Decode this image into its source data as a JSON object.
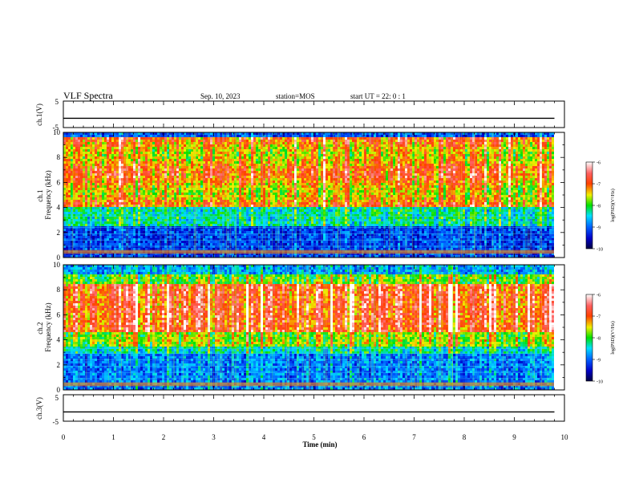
{
  "header": {
    "title": "VLF Spectra",
    "date": "Sep. 10, 2023",
    "station": "station=MOS",
    "start": "start  UT =   22: 0  : 1"
  },
  "chart_data": [
    {
      "type": "line",
      "name": "ch1-waveform",
      "ylabel": "ch.1(V)",
      "yticks": [
        "5",
        "-5"
      ],
      "ylim": [
        -5,
        5
      ],
      "xlim": [
        0,
        10
      ],
      "x": [
        0,
        9.8
      ],
      "y": [
        -1.5,
        -1.5
      ]
    },
    {
      "type": "heatmap",
      "name": "ch1-spectrogram",
      "ylabel": "ch.1\nFrequency (kHz)",
      "yticks": [
        "0",
        "2",
        "4",
        "6",
        "8",
        "10"
      ],
      "ylim": [
        0,
        10
      ],
      "xlim": [
        0,
        9.8
      ],
      "colorbar": {
        "label": "log(PSD)(V²/Hz)",
        "ticks": [
          "-6",
          "-7",
          "-8",
          "-9",
          "-10"
        ],
        "range": [
          -10,
          -6
        ]
      }
    },
    {
      "type": "heatmap",
      "name": "ch2-spectrogram",
      "ylabel": "ch.2\nFrequency (kHz)",
      "yticks": [
        "0",
        "2",
        "4",
        "6",
        "8",
        "10"
      ],
      "ylim": [
        0,
        10
      ],
      "xlim": [
        0,
        9.8
      ],
      "colorbar": {
        "label": "log(PSD)(V²/Hz)",
        "ticks": [
          "-6",
          "-7",
          "-8",
          "-9",
          "-10"
        ],
        "range": [
          -10,
          -6
        ]
      }
    },
    {
      "type": "line",
      "name": "ch3-waveform",
      "ylabel": "ch.3(V)",
      "yticks": [
        "5",
        "-5"
      ],
      "ylim": [
        -5,
        5
      ],
      "xlim": [
        0,
        10
      ],
      "x": [
        0,
        9.8
      ],
      "y": [
        -1.5,
        -1.5
      ]
    }
  ],
  "xaxis": {
    "label": "Time  (min)",
    "ticks": [
      "0",
      "1",
      "2",
      "3",
      "4",
      "5",
      "6",
      "7",
      "8",
      "9",
      "10"
    ]
  }
}
